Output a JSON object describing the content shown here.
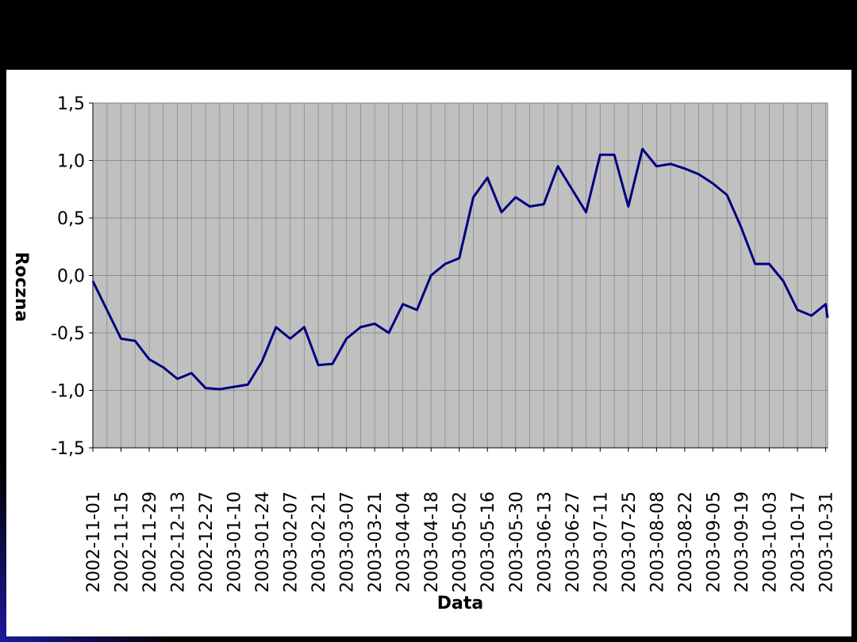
{
  "chart_data": {
    "type": "line",
    "x_label": "Data",
    "y_label": "Roczna",
    "x": [
      "2002-11-01",
      "2002-11-08",
      "2002-11-15",
      "2002-11-22",
      "2002-11-29",
      "2002-12-06",
      "2002-12-13",
      "2002-12-20",
      "2002-12-27",
      "2003-01-03",
      "2003-01-10",
      "2003-01-17",
      "2003-01-24",
      "2003-01-31",
      "2003-02-07",
      "2003-02-14",
      "2003-02-21",
      "2003-02-28",
      "2003-03-07",
      "2003-03-14",
      "2003-03-21",
      "2003-03-28",
      "2003-04-04",
      "2003-04-11",
      "2003-04-18",
      "2003-04-25",
      "2003-05-02",
      "2003-05-09",
      "2003-05-16",
      "2003-05-23",
      "2003-05-30",
      "2003-06-06",
      "2003-06-13",
      "2003-06-20",
      "2003-06-27",
      "2003-07-04",
      "2003-07-11",
      "2003-07-18",
      "2003-07-25",
      "2003-08-01",
      "2003-08-08",
      "2003-08-15",
      "2003-08-22",
      "2003-08-29",
      "2003-09-05",
      "2003-09-12",
      "2003-09-19",
      "2003-09-26",
      "2003-10-03",
      "2003-10-10",
      "2003-10-17",
      "2003-10-24",
      "2003-10-31",
      "2003-11-01"
    ],
    "series": [
      {
        "color": "#000080",
        "values": [
          -0.05,
          -0.3,
          -0.55,
          -0.57,
          -0.73,
          -0.8,
          -0.9,
          -0.85,
          -0.98,
          -0.99,
          -0.97,
          -0.95,
          -0.75,
          -0.45,
          -0.55,
          -0.45,
          -0.78,
          -0.77,
          -0.55,
          -0.45,
          -0.42,
          -0.5,
          -0.25,
          -0.3,
          0.0,
          0.1,
          0.15,
          0.68,
          0.85,
          0.55,
          0.68,
          0.6,
          0.62,
          0.95,
          0.75,
          0.55,
          1.05,
          1.05,
          0.6,
          1.1,
          0.95,
          0.97,
          0.93,
          0.88,
          0.8,
          0.7,
          0.42,
          0.1,
          0.1,
          -0.05,
          -0.3,
          -0.35,
          -0.25,
          -0.37
        ]
      }
    ],
    "xlim": [
      "2002-11-01",
      "2003-11-01"
    ],
    "xticks": [
      "2002-11-01",
      "2002-11-15",
      "2002-11-29",
      "2002-12-13",
      "2002-12-27",
      "2003-01-10",
      "2003-01-24",
      "2003-02-07",
      "2003-02-21",
      "2003-03-07",
      "2003-03-21",
      "2003-04-04",
      "2003-04-18",
      "2003-05-02",
      "2003-05-16",
      "2003-05-30",
      "2003-06-13",
      "2003-06-27",
      "2003-07-11",
      "2003-07-25",
      "2003-08-08",
      "2003-08-22",
      "2003-09-05",
      "2003-09-19",
      "2003-10-03",
      "2003-10-17",
      "2003-10-31"
    ],
    "ylim": [
      -1.5,
      1.5
    ],
    "yticks": [
      {
        "value": -1.5,
        "label": "-1,5"
      },
      {
        "value": -1.0,
        "label": "-1,0"
      },
      {
        "value": -0.5,
        "label": "-0,5"
      },
      {
        "value": 0.0,
        "label": "0,0"
      },
      {
        "value": 0.5,
        "label": "0,5"
      },
      {
        "value": 1.0,
        "label": "1,0"
      },
      {
        "value": 1.5,
        "label": "1,5"
      }
    ],
    "grid": true,
    "plot_background": "#c0c0c0"
  }
}
